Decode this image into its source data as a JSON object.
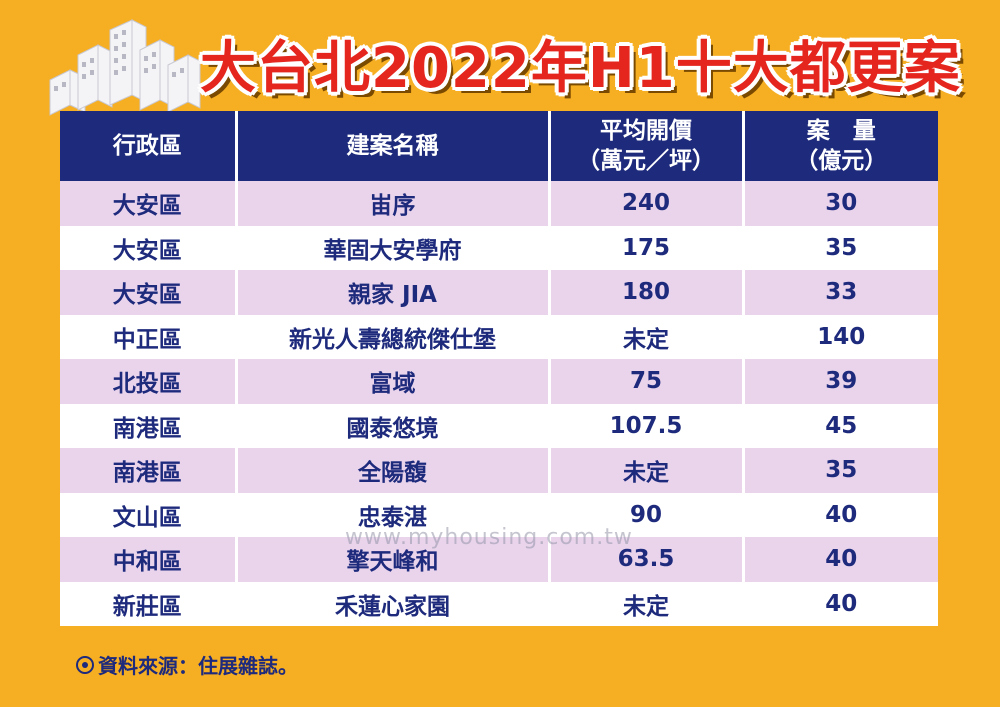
{
  "title": "大台北2022年H1十大都更案",
  "table": {
    "headers": [
      [
        "行政區"
      ],
      [
        "建案名稱"
      ],
      [
        "平均開價",
        "（萬元／坪）"
      ],
      [
        "案　量",
        "（億元）"
      ]
    ],
    "rows": [
      [
        "大安區",
        "峀序",
        "240",
        "30"
      ],
      [
        "大安區",
        "華固大安學府",
        "175",
        "35"
      ],
      [
        "大安區",
        "親家 JIA",
        "180",
        "33"
      ],
      [
        "中正區",
        "新光人壽總統傑仕堡",
        "未定",
        "140"
      ],
      [
        "北投區",
        "富域",
        "75",
        "39"
      ],
      [
        "南港區",
        "國泰悠境",
        "107.5",
        "45"
      ],
      [
        "南港區",
        "全陽馥",
        "未定",
        "35"
      ],
      [
        "文山區",
        "忠泰湛",
        "90",
        "40"
      ],
      [
        "中和區",
        "擎天峰和",
        "63.5",
        "40"
      ],
      [
        "新莊區",
        "禾蓮心家園",
        "未定",
        "40"
      ]
    ]
  },
  "watermark": "www.myhousing.com.tw",
  "source": "資料來源：住展雜誌。",
  "colors": {
    "background": "#F6AE22",
    "title": "#E4261F",
    "header": "#1E2A7C",
    "row_alt": "#E9D4EC",
    "text": "#1E2A7C"
  }
}
